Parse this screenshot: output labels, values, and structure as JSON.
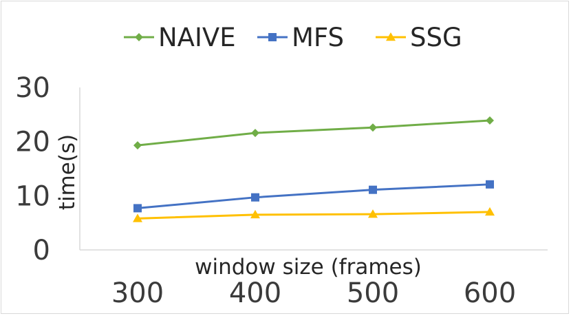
{
  "chart_data": {
    "type": "line",
    "title": "",
    "xlabel": "window size (frames)",
    "ylabel": "time(s)",
    "categories": [
      "300",
      "400",
      "500",
      "600"
    ],
    "ylim": [
      0,
      30
    ],
    "yticks": [
      "0",
      "10",
      "20",
      "30"
    ],
    "grid": false,
    "legend": "top",
    "series": [
      {
        "name": "NAIVE",
        "color": "#70ad47",
        "marker": "diamond",
        "values": [
          19.3,
          21.6,
          22.6,
          23.9
        ]
      },
      {
        "name": "MFS",
        "color": "#4472c4",
        "marker": "square",
        "values": [
          7.7,
          9.7,
          11.1,
          12.1
        ]
      },
      {
        "name": "SSG",
        "color": "#ffc000",
        "marker": "triangle",
        "values": [
          5.8,
          6.5,
          6.6,
          7.0
        ]
      }
    ]
  }
}
